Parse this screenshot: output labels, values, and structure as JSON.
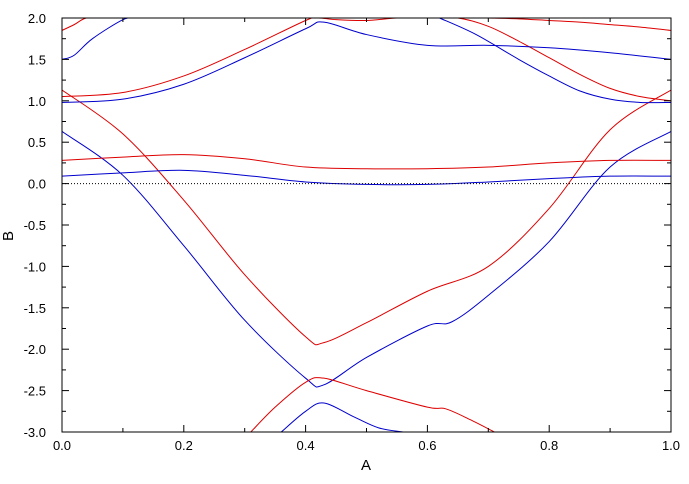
{
  "chart_data": {
    "type": "line",
    "xlabel": "A",
    "ylabel": "B",
    "xlim": [
      0.0,
      1.0
    ],
    "ylim": [
      -3.0,
      2.0
    ],
    "x_ticks": [
      "0.0",
      "0.2",
      "0.4",
      "0.6",
      "0.8",
      "1.0"
    ],
    "y_ticks": [
      "-3.0",
      "-2.5",
      "-2.0",
      "-1.5",
      "-1.0",
      "-0.5",
      "0.0",
      "0.5",
      "1.0",
      "1.5",
      "2.0"
    ],
    "grid": false,
    "reference_line": {
      "y": 0.0,
      "style": "dotted",
      "color": "#000000"
    },
    "colors": {
      "red": "#dd0000",
      "blue": "#0000cc"
    },
    "series": [
      {
        "color": "red",
        "x": [
          0.0,
          0.1,
          0.2,
          0.3,
          0.4,
          0.43,
          0.5,
          0.6,
          0.7,
          0.8,
          0.9,
          1.0
        ],
        "y": [
          1.13,
          0.6,
          -0.2,
          -1.1,
          -1.85,
          -1.92,
          -1.68,
          -1.3,
          -1.0,
          -0.3,
          0.65,
          1.13
        ]
      },
      {
        "color": "blue",
        "x": [
          0.0,
          0.1,
          0.2,
          0.3,
          0.4,
          0.43,
          0.5,
          0.6,
          0.64,
          0.7,
          0.8,
          0.9,
          1.0
        ],
        "y": [
          0.63,
          0.1,
          -0.75,
          -1.65,
          -2.35,
          -2.43,
          -2.1,
          -1.72,
          -1.67,
          -1.35,
          -0.7,
          0.2,
          0.63
        ]
      },
      {
        "color": "red",
        "x": [
          0.0,
          0.1,
          0.2,
          0.3,
          0.4,
          0.5,
          0.6,
          0.7,
          0.8,
          0.9,
          1.0
        ],
        "y": [
          0.28,
          0.32,
          0.35,
          0.3,
          0.2,
          0.18,
          0.18,
          0.2,
          0.25,
          0.28,
          0.28
        ]
      },
      {
        "color": "blue",
        "x": [
          0.0,
          0.1,
          0.2,
          0.3,
          0.4,
          0.5,
          0.6,
          0.7,
          0.8,
          0.9,
          1.0
        ],
        "y": [
          0.09,
          0.13,
          0.16,
          0.1,
          0.02,
          -0.01,
          -0.01,
          0.02,
          0.06,
          0.09,
          0.09
        ]
      },
      {
        "color": "red",
        "x": [
          0.0,
          0.1,
          0.2,
          0.3,
          0.4,
          0.42,
          0.45,
          0.5,
          0.55,
          0.6,
          0.65,
          0.7,
          0.75,
          0.8,
          0.85,
          0.9,
          0.95,
          1.0
        ],
        "y": [
          1.05,
          1.1,
          1.3,
          1.62,
          1.97,
          2.0,
          1.98,
          1.97,
          2.0,
          2.0,
          2.0,
          1.9,
          1.72,
          1.52,
          1.32,
          1.15,
          1.05,
          1.0
        ]
      },
      {
        "color": "blue",
        "x": [
          0.0,
          0.1,
          0.2,
          0.3,
          0.4,
          0.43,
          0.5,
          0.6,
          0.7,
          0.8,
          0.9,
          1.0
        ],
        "y": [
          0.98,
          1.02,
          1.2,
          1.52,
          1.87,
          1.95,
          1.8,
          1.67,
          1.67,
          1.64,
          1.58,
          1.5
        ]
      },
      {
        "color": "blue",
        "x": [
          0.0,
          0.02,
          0.05,
          0.1,
          0.12
        ],
        "y": [
          1.5,
          1.55,
          1.75,
          1.98,
          2.0
        ]
      },
      {
        "color": "red",
        "x": [
          0.0,
          0.02,
          0.04,
          0.07,
          0.1,
          0.15,
          0.2,
          0.25,
          0.3,
          0.35,
          0.4,
          0.45,
          0.5,
          0.55,
          0.6,
          0.65,
          0.7,
          0.75,
          0.8
        ],
        "y": [
          1.85,
          1.92,
          2.0,
          2.0,
          2.0,
          2.0,
          2.0,
          2.0,
          2.0,
          2.0,
          2.0,
          2.0,
          2.0,
          2.0,
          2.0,
          2.0,
          2.0,
          2.0,
          2.0
        ]
      },
      {
        "color": "blue",
        "x": [
          0.62,
          0.68,
          0.75,
          0.8,
          0.85,
          0.9,
          0.95,
          1.0
        ],
        "y": [
          2.0,
          1.8,
          1.5,
          1.3,
          1.12,
          1.02,
          0.98,
          0.98
        ]
      },
      {
        "color": "red",
        "x": [
          0.7,
          0.75,
          0.8,
          0.85,
          0.9,
          0.95,
          1.0
        ],
        "y": [
          2.0,
          1.99,
          1.97,
          1.95,
          1.92,
          1.89,
          1.85
        ]
      },
      {
        "color": "red",
        "x": [
          0.31,
          0.35,
          0.4,
          0.43,
          0.5,
          0.6,
          0.63,
          0.67,
          0.71
        ],
        "y": [
          -3.0,
          -2.7,
          -2.4,
          -2.35,
          -2.5,
          -2.7,
          -2.72,
          -2.85,
          -3.0
        ]
      },
      {
        "color": "blue",
        "x": [
          0.36,
          0.4,
          0.43,
          0.48,
          0.52,
          0.56
        ],
        "y": [
          -3.0,
          -2.75,
          -2.65,
          -2.82,
          -2.95,
          -3.0
        ]
      }
    ]
  }
}
